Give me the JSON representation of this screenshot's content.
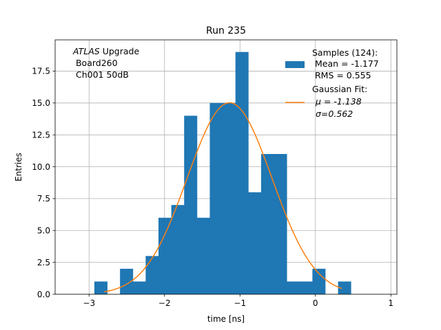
{
  "chart_data": {
    "type": "bar",
    "title": "Run 235",
    "xlabel": "time [ns]",
    "ylabel": "Entries",
    "xlim": [
      -3.45,
      1.08
    ],
    "ylim": [
      0,
      19.95
    ],
    "grid": true,
    "xticks": [
      -3,
      -2,
      -1,
      0,
      1
    ],
    "xtick_labels": [
      "−3",
      "−2",
      "−1",
      "0",
      "1"
    ],
    "yticks": [
      0,
      2.5,
      5,
      7.5,
      10,
      12.5,
      15,
      17.5
    ],
    "ytick_labels": [
      "0.0",
      "2.5",
      "5.0",
      "7.5",
      "10.0",
      "12.5",
      "15.0",
      "17.5"
    ],
    "histogram": {
      "name": "Samples (124)",
      "color": "#1f77b4",
      "bin_edges": [
        -2.93,
        -2.76,
        -2.59,
        -2.42,
        -2.25,
        -2.08,
        -1.91,
        -1.74,
        -1.57,
        -1.4,
        -1.23,
        -1.06,
        -0.89,
        -0.72,
        -0.55,
        -0.38,
        -0.21,
        -0.04,
        0.13,
        0.3,
        0.47
      ],
      "counts": [
        1,
        0,
        2,
        1,
        3,
        6,
        7,
        14,
        6,
        15,
        15,
        19,
        8,
        11,
        11,
        1,
        1,
        2,
        0,
        1
      ]
    },
    "fit": {
      "name": "Gaussian Fit",
      "color": "#ff7f0e",
      "type": "gaussian",
      "mu": -1.138,
      "sigma": 0.562,
      "amplitude": 15.02,
      "x_range": [
        -2.8,
        0.35
      ]
    },
    "legend": {
      "placement": "top-right",
      "entries": [
        {
          "label_lines": [
            "Samples (124):",
            " Mean = -1.177",
            " RMS = 0.555"
          ]
        },
        {
          "label_lines": [
            "Gaussian Fit:",
            "μ = -1.138",
            "σ=0.562"
          ]
        }
      ]
    },
    "annotation": {
      "placement": "top-left",
      "italic": "ATLAS",
      "rest": " Upgrade",
      "lines": [
        " Board260",
        " Ch001 50dB"
      ]
    }
  }
}
